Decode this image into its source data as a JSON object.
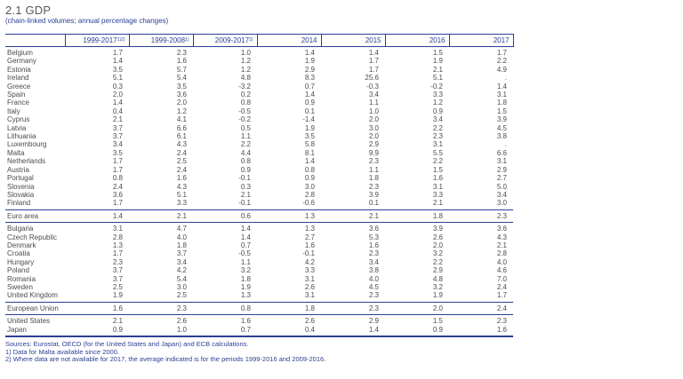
{
  "title": "2.1 GDP",
  "subtitle": "(chain-linked volumes; annual percentage changes)",
  "colors": {
    "accent_blue": "#2c3f94",
    "body_text": "#4c4c4e",
    "title_gray": "#58585a"
  },
  "table": {
    "columns": [
      {
        "label": "1999-2017",
        "sup": "1)2)"
      },
      {
        "label": "1999-2008",
        "sup": "1)"
      },
      {
        "label": "2009-2017",
        "sup": "2)"
      },
      {
        "label": "2014",
        "sup": ""
      },
      {
        "label": "2015",
        "sup": ""
      },
      {
        "label": "2016",
        "sup": ""
      },
      {
        "label": "2017",
        "sup": ""
      }
    ],
    "missing_value_symbol": ".",
    "groups": [
      {
        "name": "euro-area-countries",
        "rows": [
          [
            "Belgium",
            "1.7",
            "2.3",
            "1.0",
            "1.4",
            "1.4",
            "1.5",
            "1.7"
          ],
          [
            "Germany",
            "1.4",
            "1.6",
            "1.2",
            "1.9",
            "1.7",
            "1.9",
            "2.2"
          ],
          [
            "Estonia",
            "3.5",
            "5.7",
            "1.2",
            "2.9",
            "1.7",
            "2.1",
            "4.9"
          ],
          [
            "Ireland",
            "5.1",
            "5.4",
            "4.8",
            "8.3",
            "25.6",
            "5.1",
            "."
          ],
          [
            "Greece",
            "0.3",
            "3.5",
            "-3.2",
            "0.7",
            "-0.3",
            "-0.2",
            "1.4"
          ],
          [
            "Spain",
            "2.0",
            "3.6",
            "0.2",
            "1.4",
            "3.4",
            "3.3",
            "3.1"
          ],
          [
            "France",
            "1.4",
            "2.0",
            "0.8",
            "0.9",
            "1.1",
            "1.2",
            "1.8"
          ],
          [
            "Italy",
            "0.4",
            "1.2",
            "-0.5",
            "0.1",
            "1.0",
            "0.9",
            "1.5"
          ],
          [
            "Cyprus",
            "2.1",
            "4.1",
            "-0.2",
            "-1.4",
            "2.0",
            "3.4",
            "3.9"
          ],
          [
            "Latvia",
            "3.7",
            "6.6",
            "0.5",
            "1.9",
            "3.0",
            "2.2",
            "4.5"
          ],
          [
            "Lithuania",
            "3.7",
            "6.1",
            "1.1",
            "3.5",
            "2.0",
            "2.3",
            "3.8"
          ],
          [
            "Luxembourg",
            "3.4",
            "4.3",
            "2.2",
            "5.8",
            "2.9",
            "3.1",
            "."
          ],
          [
            "Malta",
            "3.5",
            "2.4",
            "4.4",
            "8.1",
            "9.9",
            "5.5",
            "6.6"
          ],
          [
            "Netherlands",
            "1.7",
            "2.5",
            "0.8",
            "1.4",
            "2.3",
            "2.2",
            "3.1"
          ],
          [
            "Austria",
            "1.7",
            "2.4",
            "0.9",
            "0.8",
            "1.1",
            "1.5",
            "2.9"
          ],
          [
            "Portugal",
            "0.8",
            "1.6",
            "-0.1",
            "0.9",
            "1.8",
            "1.6",
            "2.7"
          ],
          [
            "Slovenia",
            "2.4",
            "4.3",
            "0.3",
            "3.0",
            "2.3",
            "3.1",
            "5.0"
          ],
          [
            "Slovakia",
            "3.6",
            "5.1",
            "2.1",
            "2.8",
            "3.9",
            "3.3",
            "3.4"
          ],
          [
            "Finland",
            "1.7",
            "3.3",
            "-0.1",
            "-0.6",
            "0.1",
            "2.1",
            "3.0"
          ]
        ]
      },
      {
        "name": "euro-area-aggregate",
        "rows": [
          [
            "Euro area",
            "1.4",
            "2.1",
            "0.6",
            "1.3",
            "2.1",
            "1.8",
            "2.3"
          ]
        ]
      },
      {
        "name": "non-euro-eu-countries",
        "rows": [
          [
            "Bulgaria",
            "3.1",
            "4.7",
            "1.4",
            "1.3",
            "3.6",
            "3.9",
            "3.6"
          ],
          [
            "Czech Republic",
            "2.8",
            "4.0",
            "1.4",
            "2.7",
            "5.3",
            "2.6",
            "4.3"
          ],
          [
            "Denmark",
            "1.3",
            "1.8",
            "0.7",
            "1.6",
            "1.6",
            "2.0",
            "2.1"
          ],
          [
            "Croatia",
            "1.7",
            "3.7",
            "-0.5",
            "-0.1",
            "2.3",
            "3.2",
            "2.8"
          ],
          [
            "Hungary",
            "2.3",
            "3.4",
            "1.1",
            "4.2",
            "3.4",
            "2.2",
            "4.0"
          ],
          [
            "Poland",
            "3.7",
            "4.2",
            "3.2",
            "3.3",
            "3.8",
            "2.9",
            "4.6"
          ],
          [
            "Romania",
            "3.7",
            "5.4",
            "1.8",
            "3.1",
            "4.0",
            "4.8",
            "7.0"
          ],
          [
            "Sweden",
            "2.5",
            "3.0",
            "1.9",
            "2.6",
            "4.5",
            "3.2",
            "2.4"
          ],
          [
            "United Kingdom",
            "1.9",
            "2.5",
            "1.3",
            "3.1",
            "2.3",
            "1.9",
            "1.7"
          ]
        ]
      },
      {
        "name": "eu-aggregate",
        "rows": [
          [
            "European Union",
            "1.6",
            "2.3",
            "0.8",
            "1.8",
            "2.3",
            "2.0",
            "2.4"
          ]
        ]
      },
      {
        "name": "non-eu-countries",
        "rows": [
          [
            "United States",
            "2.1",
            "2.6",
            "1.6",
            "2.6",
            "2.9",
            "1.5",
            "2.3"
          ],
          [
            "Japan",
            "0.9",
            "1.0",
            "0.7",
            "0.4",
            "1.4",
            "0.9",
            "1.6"
          ]
        ]
      }
    ]
  },
  "footer": {
    "sources": "Sources: Eurostat, OECD (for the United States and Japan) and ECB calculations.",
    "notes": [
      "1) Data for Malta available since 2000.",
      "2) Where data are not available for 2017, the average indicated is for the periods 1999-2016 and 2009-2016."
    ]
  }
}
